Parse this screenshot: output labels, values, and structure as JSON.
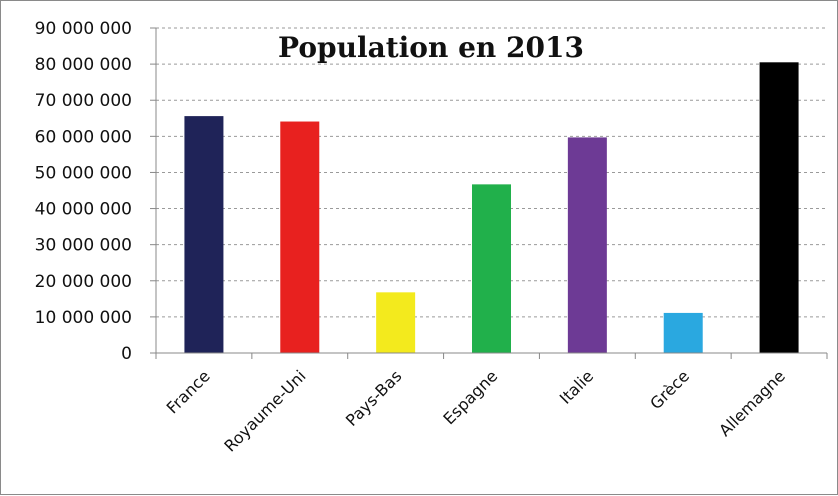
{
  "chart_data": {
    "type": "bar",
    "title": "Population en 2013",
    "xlabel": "",
    "ylabel": "",
    "categories": [
      "France",
      "Royaume-Uni",
      "Pays-Bas",
      "Espagne",
      "Italie",
      "Grèce",
      "Allemagne"
    ],
    "values": [
      65600000,
      64100000,
      16800000,
      46700000,
      59700000,
      11100000,
      80500000
    ],
    "colors": [
      "#1f2358",
      "#e8211f",
      "#f3ea1d",
      "#21b04b",
      "#6d3a95",
      "#2aa8e0",
      "#000000"
    ],
    "ylim": [
      0,
      90000000
    ],
    "yticks": [
      0,
      10000000,
      20000000,
      30000000,
      40000000,
      50000000,
      60000000,
      70000000,
      80000000,
      90000000
    ],
    "ytick_labels": [
      "0",
      "10 000 000",
      "20 000 000",
      "30 000 000",
      "40 000 000",
      "50 000 000",
      "60 000 000",
      "70 000 000",
      "80 000 000",
      "90 000 000"
    ],
    "grid": true,
    "legend": "none"
  }
}
